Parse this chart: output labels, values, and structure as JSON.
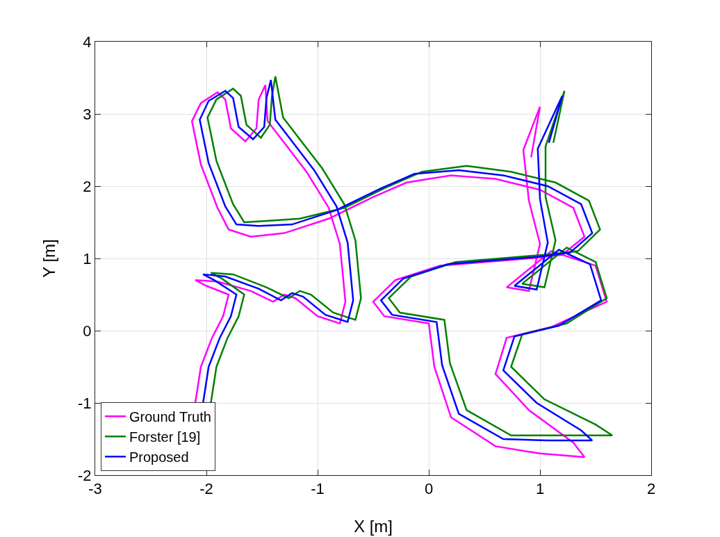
{
  "chart_data": {
    "type": "line",
    "xlabel": "X [m]",
    "ylabel": "Y [m]",
    "xlim": [
      -3,
      2
    ],
    "ylim": [
      -2,
      4
    ],
    "xticks": [
      -3,
      -2,
      -1,
      0,
      1,
      2
    ],
    "yticks": [
      -2,
      -1,
      0,
      1,
      2,
      3,
      4
    ],
    "grid": true,
    "legend": "bottom left",
    "marker": "none",
    "line_style": "solid",
    "series": [
      {
        "name": "Ground Truth",
        "color": "#ff00ff",
        "x": [
          -2.1,
          -2.05,
          -1.95,
          -1.85,
          -1.8,
          -2.0,
          -2.1,
          -1.9,
          -1.6,
          -1.4,
          -1.3,
          -1.2,
          -1.0,
          -0.8,
          -0.75,
          -0.8,
          -0.9,
          -1.1,
          -1.3,
          -1.45,
          -1.47,
          -1.53,
          -1.55,
          -1.65,
          -1.78,
          -1.83,
          -1.9,
          -2.05,
          -2.13,
          -2.05,
          -1.9,
          -1.8,
          -1.6,
          -1.3,
          -0.9,
          -0.5,
          -0.2,
          0.2,
          0.6,
          1.0,
          1.3,
          1.4,
          1.2,
          0.9,
          0.5,
          0.1,
          -0.3,
          -0.5,
          -0.4,
          0.0,
          0.05,
          0.2,
          0.6,
          1.0,
          1.4,
          1.3,
          0.9,
          0.6,
          0.7,
          1.1,
          1.6,
          1.5,
          1.1,
          0.7,
          0.9,
          1.0,
          0.9,
          0.85,
          1.0,
          0.92
        ],
        "values": [
          -1.0,
          -0.5,
          -0.1,
          0.2,
          0.5,
          0.62,
          0.7,
          0.68,
          0.55,
          0.4,
          0.5,
          0.45,
          0.2,
          0.1,
          0.4,
          1.2,
          1.7,
          2.2,
          2.6,
          2.9,
          3.4,
          3.2,
          2.8,
          2.62,
          2.8,
          3.2,
          3.3,
          3.15,
          2.9,
          2.3,
          1.7,
          1.4,
          1.3,
          1.35,
          1.55,
          1.85,
          2.05,
          2.15,
          2.1,
          1.95,
          1.7,
          1.3,
          1.05,
          1.0,
          0.95,
          0.9,
          0.7,
          0.4,
          0.2,
          0.1,
          -0.5,
          -1.2,
          -1.6,
          -1.7,
          -1.75,
          -1.55,
          -1.1,
          -0.6,
          -0.1,
          0.05,
          0.4,
          0.9,
          1.1,
          0.6,
          0.55,
          1.2,
          1.8,
          2.5,
          3.1,
          2.4
        ]
      },
      {
        "name": "Forster [19]",
        "color": "#008000",
        "x": [
          -1.96,
          -1.91,
          -1.81,
          -1.71,
          -1.66,
          -1.86,
          -1.96,
          -1.76,
          -1.46,
          -1.26,
          -1.16,
          -1.06,
          -0.86,
          -0.66,
          -0.61,
          -0.66,
          -0.76,
          -0.96,
          -1.16,
          -1.31,
          -1.38,
          -1.41,
          -1.43,
          -1.51,
          -1.64,
          -1.69,
          -1.76,
          -1.91,
          -1.99,
          -1.91,
          -1.76,
          -1.66,
          -1.46,
          -1.16,
          -0.76,
          -0.36,
          -0.06,
          0.34,
          0.74,
          1.14,
          1.44,
          1.54,
          1.34,
          1.04,
          0.64,
          0.24,
          -0.16,
          -0.36,
          -0.26,
          0.14,
          0.19,
          0.34,
          0.74,
          1.14,
          1.65,
          1.5,
          1.04,
          0.74,
          0.84,
          1.24,
          1.6,
          1.5,
          1.24,
          0.84,
          1.04,
          1.14,
          1.05,
          1.05,
          1.22,
          1.12
        ],
        "values": [
          -1.0,
          -0.5,
          -0.1,
          0.2,
          0.5,
          0.72,
          0.8,
          0.78,
          0.6,
          0.45,
          0.55,
          0.5,
          0.25,
          0.15,
          0.45,
          1.25,
          1.75,
          2.25,
          2.65,
          2.95,
          3.52,
          3.25,
          2.85,
          2.67,
          2.85,
          3.25,
          3.35,
          3.2,
          2.95,
          2.35,
          1.75,
          1.5,
          1.52,
          1.55,
          1.7,
          2.0,
          2.2,
          2.28,
          2.2,
          2.05,
          1.8,
          1.4,
          1.1,
          1.05,
          1.0,
          0.95,
          0.75,
          0.45,
          0.25,
          0.15,
          -0.45,
          -1.1,
          -1.45,
          -1.45,
          -1.45,
          -1.3,
          -0.95,
          -0.5,
          -0.05,
          0.1,
          0.45,
          0.95,
          1.15,
          0.65,
          0.6,
          1.25,
          1.85,
          2.55,
          3.32,
          2.6
        ]
      },
      {
        "name": "Proposed",
        "color": "#0000ff",
        "x": [
          -2.03,
          -1.98,
          -1.88,
          -1.78,
          -1.73,
          -1.93,
          -2.03,
          -1.83,
          -1.53,
          -1.33,
          -1.23,
          -1.13,
          -0.93,
          -0.73,
          -0.68,
          -0.73,
          -0.83,
          -1.03,
          -1.23,
          -1.38,
          -1.42,
          -1.46,
          -1.48,
          -1.58,
          -1.71,
          -1.76,
          -1.83,
          -1.98,
          -2.06,
          -1.98,
          -1.83,
          -1.73,
          -1.53,
          -1.23,
          -0.83,
          -0.43,
          -0.13,
          0.27,
          0.67,
          1.07,
          1.37,
          1.47,
          1.27,
          0.97,
          0.57,
          0.17,
          -0.23,
          -0.43,
          -0.33,
          0.07,
          0.12,
          0.27,
          0.67,
          1.07,
          1.47,
          1.37,
          0.97,
          0.67,
          0.77,
          1.17,
          1.55,
          1.45,
          1.17,
          0.77,
          0.97,
          1.07,
          1.0,
          0.98,
          1.2,
          1.08
        ],
        "values": [
          -1.0,
          -0.5,
          -0.1,
          0.2,
          0.5,
          0.7,
          0.78,
          0.75,
          0.58,
          0.42,
          0.52,
          0.47,
          0.22,
          0.12,
          0.42,
          1.22,
          1.72,
          2.22,
          2.62,
          2.92,
          3.47,
          3.22,
          2.82,
          2.65,
          2.82,
          3.22,
          3.32,
          3.18,
          2.92,
          2.32,
          1.72,
          1.47,
          1.45,
          1.47,
          1.67,
          1.97,
          2.17,
          2.22,
          2.15,
          2.0,
          1.75,
          1.35,
          1.08,
          1.02,
          0.97,
          0.92,
          0.72,
          0.42,
          0.22,
          0.12,
          -0.48,
          -1.15,
          -1.5,
          -1.52,
          -1.52,
          -1.38,
          -1.0,
          -0.55,
          -0.08,
          0.07,
          0.42,
          0.92,
          1.12,
          0.62,
          0.57,
          1.22,
          1.82,
          2.52,
          3.25,
          2.6
        ]
      }
    ]
  }
}
